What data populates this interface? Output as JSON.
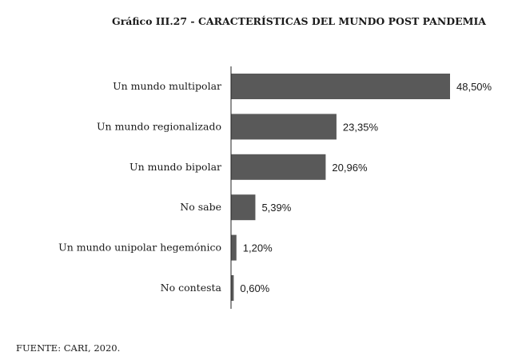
{
  "chart_data": {
    "type": "bar",
    "orientation": "horizontal",
    "title": "Gráfico III.27 - CARACTERÍSTICAS DEL MUNDO POST PANDEMIA",
    "categories": [
      "Un mundo multipolar",
      "Un mundo regionalizado",
      "Un mundo bipolar",
      "No sabe",
      "Un mundo unipolar hegemónico",
      "No contesta"
    ],
    "values": [
      48.5,
      23.35,
      20.96,
      5.39,
      1.2,
      0.6
    ],
    "value_labels": [
      "48,50%",
      "23,35%",
      "20,96%",
      "5,39%",
      "1,20%",
      "0,60%"
    ],
    "xlim": [
      0,
      48.5
    ],
    "bar_color": "#595959",
    "grid": false,
    "legend": "none",
    "source": "FUENTE: CARI, 2020."
  }
}
